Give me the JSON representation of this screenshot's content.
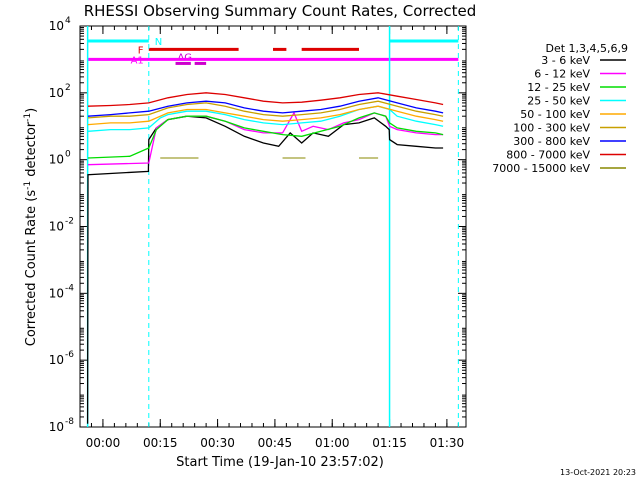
{
  "chart_data": {
    "type": "line",
    "title": "RHESSI Observing Summary Count Rates, Corrected",
    "xlabel": "Start Time (19-Jan-10 23:57:02)",
    "ylabel_main": "Corrected Count Rate (s",
    "ylabel_sup1": "-1",
    "ylabel_mid": " detector",
    "ylabel_sup2": "-1",
    "ylabel_end": ")",
    "footer_date": "13-Oct-2021 20:23",
    "x_unit": "minutes since 23:57:02",
    "xlim": [
      -3,
      98
    ],
    "ylim_log10": [
      -8,
      4
    ],
    "x_ticks": [
      {
        "v": 3,
        "label": "00:00"
      },
      {
        "v": 18,
        "label": "00:15"
      },
      {
        "v": 33,
        "label": "00:30"
      },
      {
        "v": 48,
        "label": "00:45"
      },
      {
        "v": 63,
        "label": "01:00"
      },
      {
        "v": 78,
        "label": "01:15"
      },
      {
        "v": 93,
        "label": "01:30"
      }
    ],
    "y_ticks": [
      {
        "exp": 4,
        "base": "10",
        "sup": "4"
      },
      {
        "exp": 2,
        "base": "10",
        "sup": "2"
      },
      {
        "exp": 0,
        "base": "10",
        "sup": "0"
      },
      {
        "exp": -2,
        "base": "10",
        "sup": "-2"
      },
      {
        "exp": -4,
        "base": "10",
        "sup": "-4"
      },
      {
        "exp": -6,
        "base": "10",
        "sup": "-6"
      },
      {
        "exp": -8,
        "base": "10",
        "sup": "-8"
      }
    ],
    "legend": {
      "title": "Det 1,3,4,5,6,9",
      "position": "right",
      "entries": [
        {
          "label": "3 - 6 keV",
          "color": "#000000"
        },
        {
          "label": "6 - 12 keV",
          "color": "#ff00ff"
        },
        {
          "label": "12 - 25 keV",
          "color": "#00dd00"
        },
        {
          "label": "25 - 50 keV",
          "color": "#00ffff"
        },
        {
          "label": "50 - 100 keV",
          "color": "#ffaa00"
        },
        {
          "label": "100 - 300 keV",
          "color": "#c8a000"
        },
        {
          "label": "300 - 800 keV",
          "color": "#0000ff"
        },
        {
          "label": "800 - 7000 keV",
          "color": "#dd0000"
        },
        {
          "label": "7000 - 15000 keV",
          "color": "#888800"
        }
      ]
    },
    "series": [
      {
        "name": "3 - 6 keV",
        "color": "#000000",
        "x": [
          -1,
          -0.9,
          14.9,
          15,
          17,
          20,
          25,
          30,
          35,
          40,
          45,
          49,
          52,
          55,
          58,
          62,
          66,
          70,
          74,
          77,
          77.9,
          78,
          80,
          85,
          90,
          92
        ],
        "log10": [
          -7.9,
          -0.45,
          -0.35,
          0.6,
          0.95,
          1.2,
          1.3,
          1.25,
          1.0,
          0.7,
          0.5,
          0.4,
          0.8,
          0.5,
          0.8,
          0.7,
          1.05,
          1.1,
          1.25,
          1.0,
          0.9,
          0.6,
          0.45,
          0.4,
          0.35,
          0.35
        ]
      },
      {
        "name": "6 - 12 keV",
        "color": "#ff00ff",
        "x": [
          -0.9,
          15,
          17,
          20,
          25,
          30,
          35,
          40,
          45,
          50,
          53,
          55,
          58,
          62,
          66,
          70,
          74,
          77,
          78,
          80,
          85,
          90,
          92
        ],
        "log10": [
          -0.15,
          -0.1,
          0.95,
          1.2,
          1.3,
          1.3,
          1.15,
          0.9,
          0.8,
          0.8,
          1.4,
          0.85,
          1.0,
          0.9,
          1.1,
          1.2,
          1.4,
          1.3,
          1.0,
          0.9,
          0.8,
          0.75,
          0.75
        ]
      },
      {
        "name": "12 - 25 keV",
        "color": "#00dd00",
        "x": [
          -0.9,
          10,
          15,
          17,
          20,
          25,
          30,
          35,
          40,
          45,
          50,
          55,
          60,
          65,
          70,
          74,
          77,
          78,
          80,
          85,
          90,
          92
        ],
        "log10": [
          0.05,
          0.1,
          0.35,
          0.9,
          1.2,
          1.3,
          1.3,
          1.15,
          0.95,
          0.85,
          0.75,
          0.7,
          0.85,
          1.0,
          1.25,
          1.4,
          1.3,
          1.1,
          0.95,
          0.85,
          0.8,
          0.75
        ]
      },
      {
        "name": "25 - 50 keV",
        "color": "#00ffff",
        "x": [
          -0.9,
          5,
          10,
          15,
          18,
          20,
          25,
          30,
          35,
          40,
          45,
          50,
          55,
          60,
          65,
          70,
          75,
          78,
          80,
          85,
          90,
          92
        ],
        "log10": [
          0.85,
          0.9,
          0.9,
          0.95,
          1.25,
          1.35,
          1.45,
          1.45,
          1.35,
          1.2,
          1.1,
          1.05,
          1.1,
          1.15,
          1.3,
          1.5,
          1.6,
          1.5,
          1.3,
          1.15,
          1.05,
          1.0
        ]
      },
      {
        "name": "50 - 100 keV",
        "color": "#ffaa00",
        "x": [
          -0.9,
          5,
          10,
          15,
          20,
          25,
          30,
          35,
          40,
          45,
          50,
          55,
          60,
          65,
          70,
          75,
          80,
          85,
          90,
          92
        ],
        "log10": [
          1.05,
          1.1,
          1.1,
          1.15,
          1.4,
          1.5,
          1.5,
          1.4,
          1.3,
          1.2,
          1.15,
          1.2,
          1.25,
          1.35,
          1.5,
          1.6,
          1.45,
          1.3,
          1.2,
          1.15
        ]
      },
      {
        "name": "100 - 300 keV",
        "color": "#c8a000",
        "x": [
          -0.9,
          5,
          10,
          15,
          20,
          25,
          30,
          35,
          40,
          45,
          50,
          55,
          60,
          65,
          70,
          75,
          80,
          85,
          90,
          92
        ],
        "log10": [
          1.25,
          1.3,
          1.3,
          1.35,
          1.55,
          1.65,
          1.7,
          1.6,
          1.45,
          1.35,
          1.3,
          1.35,
          1.4,
          1.5,
          1.65,
          1.75,
          1.6,
          1.45,
          1.35,
          1.3
        ]
      },
      {
        "name": "300 - 800 keV",
        "color": "#0000ff",
        "x": [
          -0.9,
          5,
          10,
          15,
          20,
          25,
          30,
          35,
          40,
          45,
          50,
          55,
          60,
          65,
          70,
          75,
          80,
          85,
          90,
          92
        ],
        "log10": [
          1.3,
          1.35,
          1.4,
          1.45,
          1.6,
          1.7,
          1.75,
          1.7,
          1.55,
          1.45,
          1.4,
          1.45,
          1.5,
          1.6,
          1.75,
          1.85,
          1.7,
          1.55,
          1.45,
          1.4
        ]
      },
      {
        "name": "800 - 7000 keV",
        "color": "#dd0000",
        "x": [
          -0.9,
          5,
          10,
          15,
          20,
          25,
          30,
          35,
          40,
          45,
          50,
          55,
          60,
          65,
          70,
          75,
          80,
          85,
          90,
          92
        ],
        "log10": [
          1.6,
          1.62,
          1.65,
          1.7,
          1.85,
          1.95,
          2.0,
          1.95,
          1.85,
          1.75,
          1.7,
          1.72,
          1.78,
          1.85,
          1.95,
          2.0,
          1.9,
          1.8,
          1.7,
          1.65
        ]
      },
      {
        "name": "7000 - 15000 keV",
        "color": "#888800",
        "segments": true,
        "x": [
          18,
          28,
          50,
          56,
          70,
          75
        ],
        "log10": [
          0.05,
          0.05,
          0.05,
          0.05,
          0.05,
          0.05
        ]
      }
    ],
    "status_bars": [
      {
        "label": "N",
        "color": "#00ffff",
        "log10": 3.55,
        "ranges": [
          [
            -1,
            15
          ],
          [
            78,
            96
          ]
        ]
      },
      {
        "label": "F",
        "color": "#dd0000",
        "log10": 3.3,
        "ranges": [
          [
            15,
            38.5
          ],
          [
            47.5,
            51
          ],
          [
            55,
            70
          ]
        ]
      },
      {
        "label": "AG",
        "color": "#cc00cc",
        "log10": 2.88,
        "ranges": [
          [
            22,
            26
          ],
          [
            27,
            30
          ]
        ]
      },
      {
        "label": "A1",
        "color": "#ff00ff",
        "log10": 3.0,
        "ranges": [
          [
            -1,
            96
          ]
        ]
      }
    ],
    "vlines_solid": [
      -1,
      78
    ],
    "vlines_dashed": [
      15,
      96
    ]
  }
}
